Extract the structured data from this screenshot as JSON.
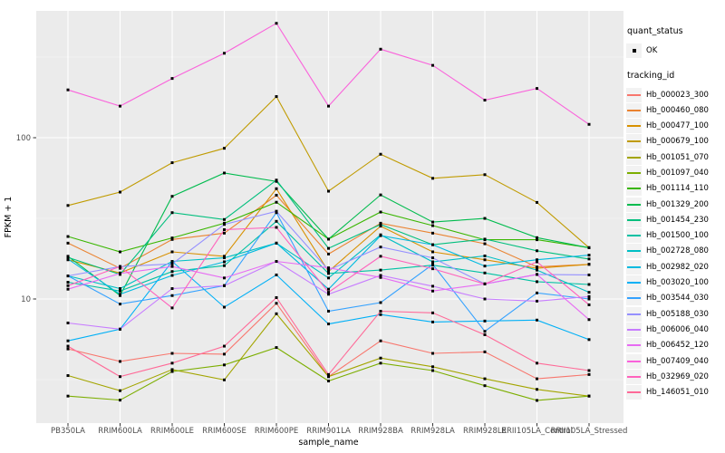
{
  "figure": {
    "background": "#FFFFFF",
    "panel_bg": "#EBEBEB",
    "grid_color": "#FFFFFF",
    "tick_text_color": "#4D4D4D",
    "axis_title_color": "#000000",
    "point_color": "#000000",
    "legend_key_bg": "#F2F2F2"
  },
  "legend": {
    "quant_status": {
      "title": "quant_status",
      "items": [
        {
          "label": "OK",
          "marker": "point-icon"
        }
      ]
    },
    "tracking_id": {
      "title": "tracking_id"
    }
  },
  "chart_data": {
    "type": "line",
    "title": "",
    "xlabel": "sample_name",
    "ylabel": "FPKM + 1",
    "y_scale": "log10",
    "y_range": [
      1.7,
      610
    ],
    "y_tick_values": [
      100,
      10
    ],
    "y_tick_labels": [
      "100",
      "10"
    ],
    "y_minor_tick_values": [
      316.23,
      31.623,
      3.1623
    ],
    "grid": true,
    "legend_position": "right",
    "marker": "black-square-point",
    "x_categories": [
      "PB350LA",
      "RRIM600LA",
      "RRIM600LE",
      "RRIM600SE",
      "RRIM600PE",
      "RRIM901LA",
      "RRIM928BA",
      "RRIM928LA",
      "RRIM928LE",
      "RRII105LA_Control",
      "RRII105LA_Stressed"
    ],
    "series": [
      {
        "name": "Hb_000023_300",
        "color": "#F8766D",
        "values": [
          4.9,
          4.1,
          4.6,
          4.55,
          9.4,
          3.3,
          5.5,
          4.6,
          4.7,
          3.2,
          3.4
        ]
      },
      {
        "name": "Hb_000460_080",
        "color": "#EA8331",
        "values": [
          22.2,
          15.5,
          23.4,
          25.6,
          44,
          19,
          29.5,
          25.6,
          22,
          15.8,
          16.4
        ]
      },
      {
        "name": "Hb_000477_100",
        "color": "#D89000",
        "values": [
          17.5,
          14.5,
          19.6,
          18.4,
          48.3,
          14.8,
          28.3,
          19.6,
          17.5,
          15.5,
          16.4
        ]
      },
      {
        "name": "Hb_000679_100",
        "color": "#C09B00",
        "values": [
          38,
          46,
          70,
          86,
          180,
          46.6,
          79,
          56,
          59,
          39.7,
          20.8
        ]
      },
      {
        "name": "Hb_001051_070",
        "color": "#A3A500",
        "values": [
          3.35,
          2.7,
          3.65,
          3.15,
          8.1,
          3.3,
          4.3,
          3.8,
          3.2,
          2.75,
          2.5
        ]
      },
      {
        "name": "Hb_001097_040",
        "color": "#7CAE00",
        "values": [
          2.5,
          2.36,
          3.55,
          3.9,
          5,
          3.1,
          4,
          3.6,
          2.9,
          2.35,
          2.5
        ]
      },
      {
        "name": "Hb_001114_110",
        "color": "#39B600",
        "values": [
          24.4,
          19.6,
          23.9,
          29.5,
          39.8,
          23.5,
          34.6,
          28.5,
          23.3,
          23.3,
          20.8
        ]
      },
      {
        "name": "Hb_001329_200",
        "color": "#00BB4E",
        "values": [
          18.4,
          10.5,
          43.3,
          60.4,
          53.6,
          23.5,
          44.2,
          30,
          31.6,
          24,
          20.8
        ]
      },
      {
        "name": "Hb_001454_230",
        "color": "#00BF7D",
        "values": [
          18.1,
          14.2,
          34.3,
          31.1,
          54.6,
          20.6,
          29,
          21.7,
          23.5,
          19.9,
          17.7
        ]
      },
      {
        "name": "Hb_001500_100",
        "color": "#00C1A3",
        "values": [
          12.7,
          11.2,
          14.8,
          16.1,
          30.3,
          14.4,
          15.1,
          16.2,
          14.5,
          12.8,
          12.3
        ]
      },
      {
        "name": "Hb_002728_080",
        "color": "#00BFC4",
        "values": [
          13.9,
          11.6,
          17.1,
          18,
          22.2,
          13.5,
          25,
          17,
          18.5,
          15.1,
          11
        ]
      },
      {
        "name": "Hb_002982_020",
        "color": "#00BAE0",
        "values": [
          17.7,
          10.7,
          14,
          17,
          22.2,
          11.5,
          24.7,
          21.7,
          16,
          17.5,
          18.7
        ]
      },
      {
        "name": "Hb_003020_100",
        "color": "#00B0F6",
        "values": [
          5.5,
          6.5,
          17.1,
          8.9,
          14.1,
          7,
          8,
          7.2,
          7.3,
          7.4,
          5.6
        ]
      },
      {
        "name": "Hb_003544_030",
        "color": "#35A2FF",
        "values": [
          13.9,
          9.3,
          10.5,
          12.1,
          34.3,
          8.4,
          9.5,
          16.4,
          6.3,
          10.9,
          10
        ]
      },
      {
        "name": "Hb_005188_030",
        "color": "#9590FF",
        "values": [
          13.9,
          15.9,
          16.5,
          29,
          35,
          15.1,
          21,
          18,
          12.4,
          14.2,
          14.1
        ]
      },
      {
        "name": "Hb_006006_040",
        "color": "#C77CFF",
        "values": [
          7.1,
          6.5,
          11.6,
          12.1,
          17.1,
          10.7,
          14,
          12,
          10,
          9.7,
          10.35
        ]
      },
      {
        "name": "Hb_006452_120",
        "color": "#E76BF3",
        "values": [
          11.5,
          14.4,
          15.9,
          13.5,
          17.1,
          15.6,
          13.6,
          11.2,
          12.4,
          14.2,
          7.45
        ]
      },
      {
        "name": "Hb_007409_040",
        "color": "#FA62DB",
        "values": [
          198,
          157,
          233,
          334,
          512,
          157,
          354,
          281,
          171,
          202,
          121
        ]
      },
      {
        "name": "Hb_032969_020",
        "color": "#FF62BC",
        "values": [
          12.1,
          15.9,
          8.8,
          26.9,
          27.8,
          11,
          18.4,
          15.4,
          12.4,
          17,
          9.2
        ]
      },
      {
        "name": "Hb_146051_010",
        "color": "#FF6A98",
        "values": [
          5.1,
          3.3,
          4,
          5.1,
          10.2,
          3.4,
          8.4,
          8.2,
          6,
          4,
          3.6
        ]
      }
    ]
  }
}
